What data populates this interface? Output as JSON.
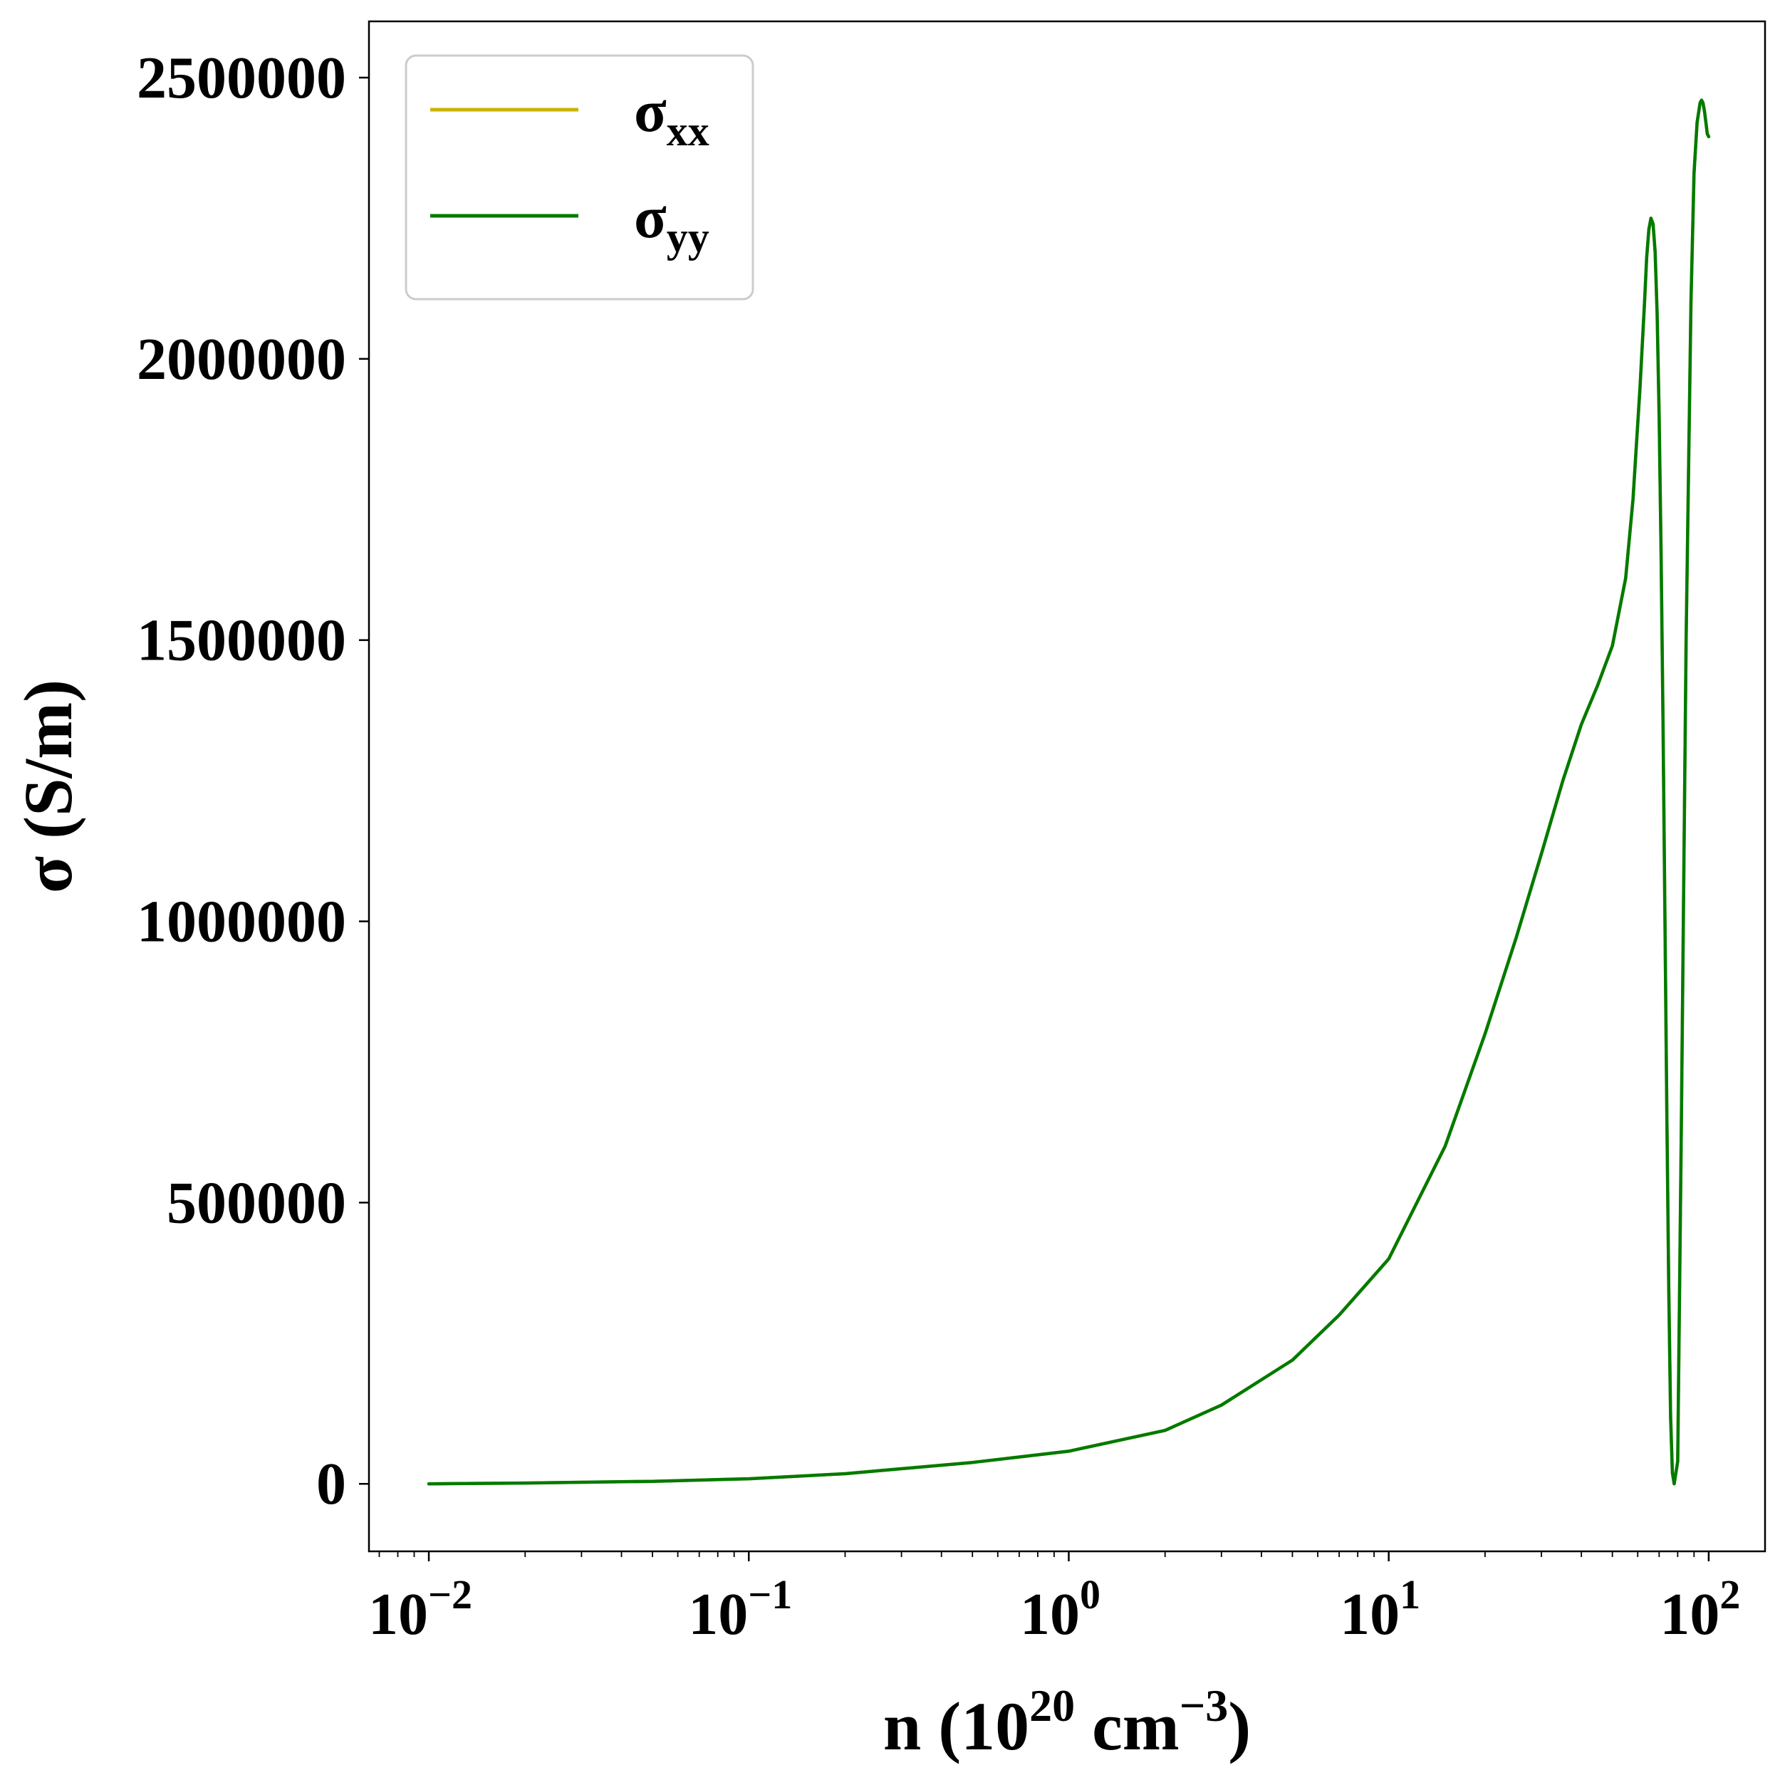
{
  "chart_data": {
    "type": "line",
    "title": "",
    "xlabel": {
      "main": "n (10",
      "sup": "20",
      "unit": " cm",
      "unit_sup": "−3",
      "close": ")"
    },
    "ylabel": "σ (S/m)",
    "xscale": "log",
    "xlim": [
      0.0065,
      150
    ],
    "ylim": [
      -120000,
      2600000
    ],
    "grid": false,
    "legend_placement": "top-left",
    "x_ticks": [
      {
        "base": "10",
        "exp": "−2",
        "value": 0.01
      },
      {
        "base": "10",
        "exp": "−1",
        "value": 0.1
      },
      {
        "base": "10",
        "exp": "0",
        "value": 1
      },
      {
        "base": "10",
        "exp": "1",
        "value": 10
      },
      {
        "base": "10",
        "exp": "2",
        "value": 100
      }
    ],
    "y_ticks": [
      {
        "label": "0",
        "value": 0
      },
      {
        "label": "500000",
        "value": 500000
      },
      {
        "label": "1000000",
        "value": 1000000
      },
      {
        "label": "1500000",
        "value": 1500000
      },
      {
        "label": "2000000",
        "value": 2000000
      },
      {
        "label": "2500000",
        "value": 2500000
      }
    ],
    "series": [
      {
        "name": "σxx",
        "name_base": "σ",
        "name_sub": "xx",
        "color": "#c8b400",
        "x": [
          0.01,
          0.02,
          0.05,
          0.1,
          0.2,
          0.5,
          1,
          2,
          3,
          5,
          7,
          10,
          15,
          20,
          25,
          30,
          35,
          40,
          45,
          50,
          55,
          58,
          61,
          63,
          64,
          65,
          66,
          67,
          68,
          69,
          70,
          71,
          72,
          73,
          74,
          75,
          76,
          77,
          78,
          80,
          82,
          85,
          88,
          90,
          92,
          94,
          95,
          96,
          97,
          98,
          99,
          100
        ],
        "y": [
          0,
          1500,
          4500,
          9000,
          18000,
          38000,
          58000,
          95000,
          140000,
          220000,
          300000,
          400000,
          600000,
          800000,
          970000,
          1120000,
          1250000,
          1350000,
          1420000,
          1490000,
          1610000,
          1750000,
          1950000,
          2100000,
          2180000,
          2230000,
          2250000,
          2240000,
          2190000,
          2080000,
          1900000,
          1650000,
          1350000,
          1000000,
          650000,
          350000,
          120000,
          20000,
          0,
          40000,
          600000,
          1500000,
          2100000,
          2330000,
          2420000,
          2455000,
          2460000,
          2455000,
          2440000,
          2420000,
          2400000,
          2395000
        ]
      },
      {
        "name": "σyy",
        "name_base": "σ",
        "name_sub": "yy",
        "color": "#007a00",
        "x": [
          0.01,
          0.02,
          0.05,
          0.1,
          0.2,
          0.5,
          1,
          2,
          3,
          5,
          7,
          10,
          15,
          20,
          25,
          30,
          35,
          40,
          45,
          50,
          55,
          58,
          61,
          63,
          64,
          65,
          66,
          67,
          68,
          69,
          70,
          71,
          72,
          73,
          74,
          75,
          76,
          77,
          78,
          80,
          82,
          85,
          88,
          90,
          92,
          94,
          95,
          96,
          97,
          98,
          99,
          100
        ],
        "y": [
          0,
          1500,
          4500,
          9000,
          18000,
          38000,
          58000,
          95000,
          140000,
          220000,
          300000,
          400000,
          600000,
          800000,
          970000,
          1120000,
          1250000,
          1350000,
          1420000,
          1490000,
          1610000,
          1750000,
          1950000,
          2100000,
          2180000,
          2230000,
          2250000,
          2240000,
          2190000,
          2080000,
          1900000,
          1650000,
          1350000,
          1000000,
          650000,
          350000,
          120000,
          20000,
          0,
          40000,
          600000,
          1500000,
          2100000,
          2330000,
          2420000,
          2455000,
          2460000,
          2455000,
          2440000,
          2420000,
          2400000,
          2395000
        ]
      }
    ]
  }
}
